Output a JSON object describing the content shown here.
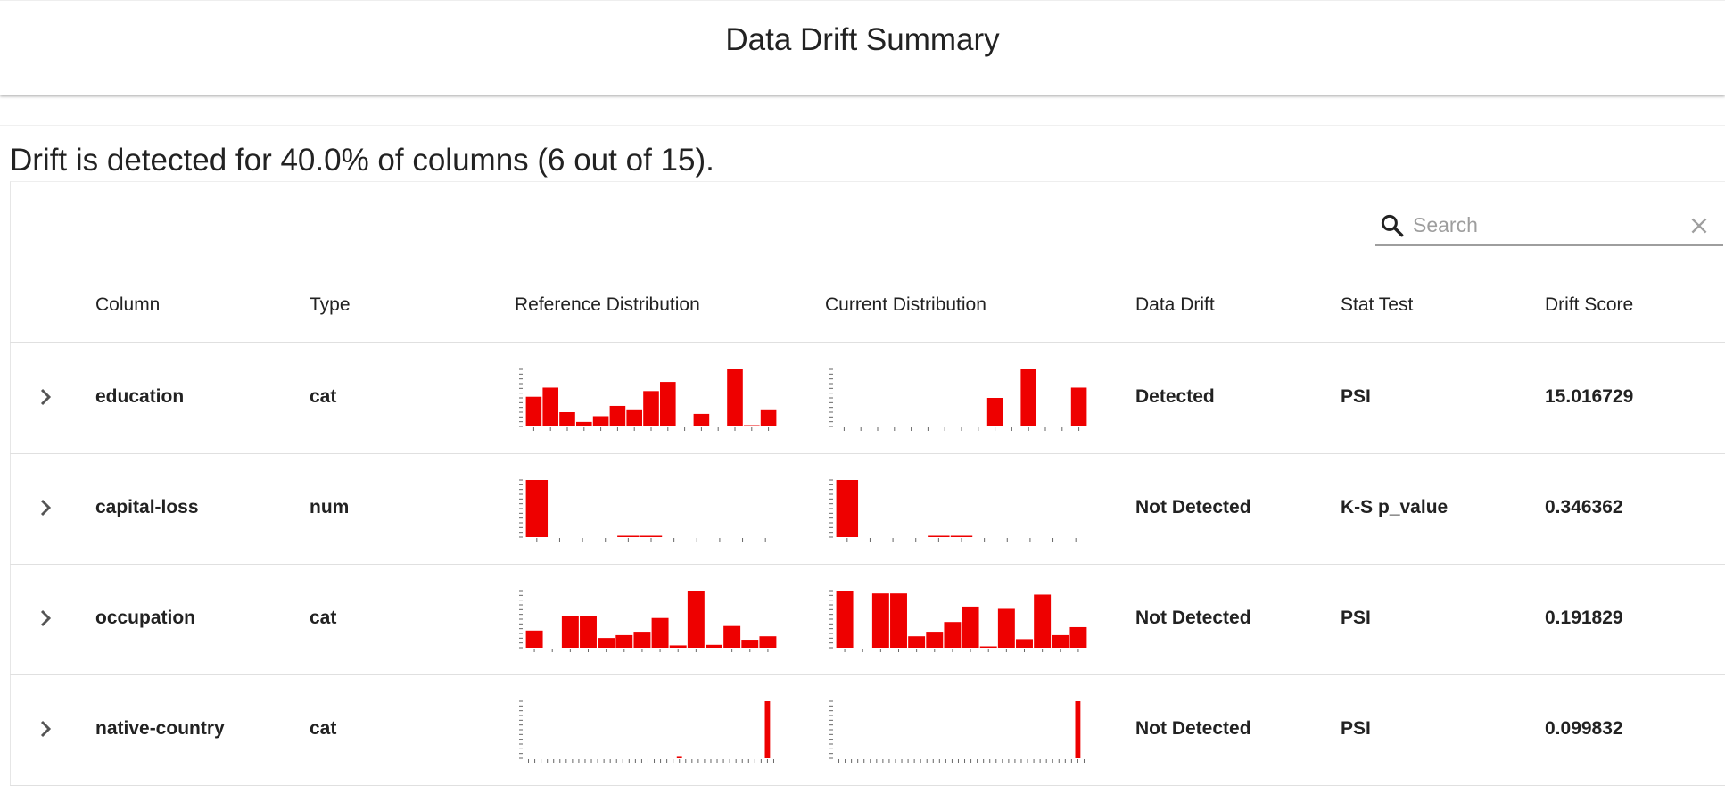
{
  "header": {
    "title": "Data Drift Summary"
  },
  "summary": {
    "text": "Drift is detected for 40.0% of columns (6 out of 15)."
  },
  "search": {
    "placeholder": "Search",
    "value": ""
  },
  "table": {
    "columns": [
      "Column",
      "Type",
      "Reference Distribution",
      "Current Distribution",
      "Data Drift",
      "Stat Test",
      "Drift Score"
    ],
    "rows": [
      {
        "column": "education",
        "type": "cat",
        "data_drift": "Detected",
        "stat_test": "PSI",
        "drift_score": "15.016729",
        "reference": [
          0.52,
          0.68,
          0.25,
          0.08,
          0.18,
          0.36,
          0.3,
          0.62,
          0.78,
          0,
          0.22,
          0,
          1.0,
          0.02,
          0.3
        ],
        "current": [
          0,
          0,
          0,
          0,
          0,
          0,
          0,
          0,
          0,
          0.5,
          0,
          1.0,
          0,
          0,
          0.68
        ]
      },
      {
        "column": "capital-loss",
        "type": "num",
        "data_drift": "Not Detected",
        "stat_test": "K-S p_value",
        "drift_score": "0.346362",
        "reference": [
          1.0,
          0,
          0,
          0,
          0.02,
          0.02,
          0,
          0,
          0,
          0,
          0
        ],
        "current": [
          1.0,
          0,
          0,
          0,
          0.02,
          0.02,
          0,
          0,
          0,
          0,
          0
        ]
      },
      {
        "column": "occupation",
        "type": "cat",
        "data_drift": "Not Detected",
        "stat_test": "PSI",
        "drift_score": "0.191829",
        "reference": [
          0.3,
          0,
          0.55,
          0.55,
          0.17,
          0.22,
          0.28,
          0.52,
          0.04,
          1.0,
          0.05,
          0.38,
          0.14,
          0.2
        ],
        "current": [
          1.0,
          0,
          0.95,
          0.95,
          0.2,
          0.28,
          0.45,
          0.72,
          0.02,
          0.68,
          0.15,
          0.93,
          0.22,
          0.36
        ]
      },
      {
        "column": "native-country",
        "type": "cat",
        "data_drift": "Not Detected",
        "stat_test": "PSI",
        "drift_score": "0.099832",
        "reference": [
          0,
          0,
          0,
          0,
          0,
          0,
          0,
          0,
          0,
          0,
          0,
          0,
          0,
          0,
          0,
          0,
          0,
          0,
          0,
          0,
          0,
          0,
          0,
          0,
          0.04,
          0,
          0,
          0,
          0,
          0,
          0,
          0,
          0,
          0,
          0,
          0,
          0,
          0,
          1.0,
          0
        ],
        "current": [
          0,
          0,
          0,
          0,
          0,
          0,
          0,
          0,
          0,
          0,
          0,
          0,
          0,
          0,
          0,
          0,
          0,
          0,
          0,
          0,
          0,
          0,
          0,
          0,
          0,
          0,
          0,
          0,
          0,
          0,
          0,
          0,
          0,
          0,
          0,
          0,
          0,
          0,
          1.0,
          0
        ]
      }
    ]
  },
  "colors": {
    "bar": "#ee0000",
    "axis": "#666666",
    "border": "#e0e0e0"
  },
  "icons": {
    "search": "search-icon",
    "clear": "close-icon",
    "expand": "chevron-right-icon"
  }
}
